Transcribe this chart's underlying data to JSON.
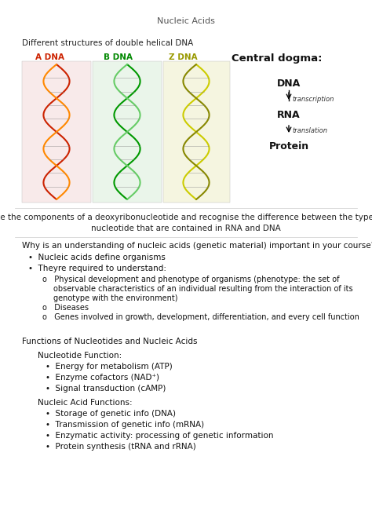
{
  "title": "Nucleic Acids",
  "section1_heading": "Different structures of double helical DNA",
  "dna_labels": [
    "A DNA",
    "B DNA",
    "Z DNA"
  ],
  "dna_label_colors": [
    "#cc2200",
    "#008800",
    "#999900"
  ],
  "central_dogma_title": "Central dogma:",
  "state_text_line1": "State the components of a deoxyribonucleotide and recognise the difference between the types of",
  "state_text_line2": "nucleotide that are contained in RNA and DNA",
  "why_heading": "Why is an understanding of nucleic acids (genetic material) important in your course?",
  "bullet1": "Nucleic acids define organisms",
  "bullet2": "Theyre required to understand:",
  "sub_bullet1a": "Physical development and phenotype of organisms (phenotype: the set of",
  "sub_bullet1b": "observable characteristics of an individual resulting from the interaction of its",
  "sub_bullet1c": "genotype with the environment)",
  "sub_bullet2": "Diseases",
  "sub_bullet3": "Genes involved in growth, development, differentiation, and every cell function",
  "functions_heading": "Functions of Nucleotides and Nucleic Acids",
  "nucleotide_fn_heading": "Nucleotide Function:",
  "nucleotide_fn_bullets": [
    "Energy for metabolism (ATP)",
    "Enzyme cofactors (NAD⁺)",
    "Signal transduction (cAMP)"
  ],
  "nucleic_acid_fn_heading": "Nucleic Acid Functions:",
  "nucleic_acid_fn_bullets": [
    "Storage of genetic info (DNA)",
    "Transmission of genetic info (mRNA)",
    "Enzymatic activity: processing of genetic information",
    "Protein synthesis (tRNA and rRNA)"
  ],
  "bg_color": "#ffffff",
  "text_color": "#111111",
  "line_color": "#cccccc"
}
